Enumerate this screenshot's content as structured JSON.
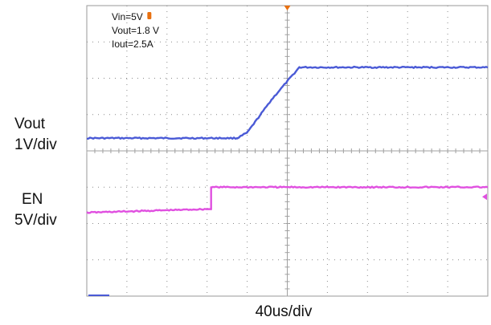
{
  "annotations": {
    "vin": "Vin=5V",
    "vout": "Vout=1.8 V",
    "iout": "Iout=2.5A"
  },
  "channels": [
    {
      "name": "Vout",
      "scale": "1V/div"
    },
    {
      "name": "EN",
      "scale": "5V/div"
    }
  ],
  "timebase": "40us/div",
  "colors": {
    "vout_trace": "#4a5ad6",
    "en_trace": "#e050e0",
    "grid": "#8a8a8a",
    "trigger_marker": "#e87010"
  },
  "chart_data": {
    "type": "line",
    "grid": true,
    "x_divisions": 10,
    "y_divisions": 8,
    "x_unit": "div",
    "y_unit": "div",
    "xlim": [
      0,
      10
    ],
    "ylim": [
      0,
      8
    ],
    "series": [
      {
        "name": "Vout",
        "color": "#4a5ad6",
        "x": [
          0,
          3.75,
          4.0,
          4.6,
          5.3,
          10
        ],
        "y": [
          4.35,
          4.35,
          4.5,
          5.4,
          6.3,
          6.3
        ]
      },
      {
        "name": "EN",
        "color": "#e050e0",
        "x": [
          0,
          3.1,
          3.1,
          10
        ],
        "y": [
          2.3,
          2.4,
          3.0,
          3.0
        ]
      }
    ]
  }
}
